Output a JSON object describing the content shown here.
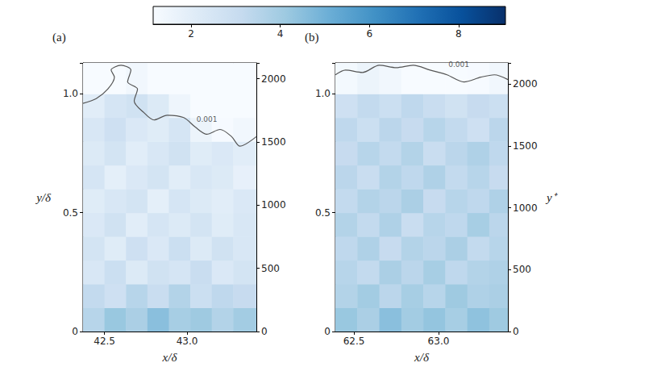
{
  "chart_data": [
    {
      "type": "heatmap",
      "panel": "(a)",
      "xlabel": "x/δ",
      "ylabel": "y/δ",
      "xlim": [
        42.37,
        43.42
      ],
      "xticks": [
        42.5,
        {
          "value": 43,
          "label": "43.0"
        }
      ],
      "ylim": [
        0,
        1.13
      ],
      "yticks": [
        0,
        0.5,
        {
          "value": 1,
          "label": "1.0"
        }
      ],
      "y2lim": [
        0,
        2125
      ],
      "y2ticks": [
        0,
        500,
        1000,
        1500,
        2000
      ],
      "x_edges": [
        42.37,
        42.5,
        42.63,
        42.76,
        42.89,
        43.02,
        43.15,
        43.28,
        43.42
      ],
      "y_edges": [
        0,
        0.1,
        0.2,
        0.3,
        0.4,
        0.5,
        0.6,
        0.7,
        0.8,
        0.9,
        1.0,
        1.13
      ],
      "cells": [
        [
          3.5,
          4.2,
          3.8,
          4.5,
          3.9,
          4.1,
          3.6,
          4.0
        ],
        [
          3.2,
          2.8,
          3.5,
          3.0,
          3.6,
          2.9,
          3.3,
          3.1
        ],
        [
          2.4,
          2.9,
          2.2,
          2.7,
          2.5,
          3.0,
          2.3,
          2.6
        ],
        [
          2.6,
          2.1,
          2.8,
          2.3,
          2.9,
          2.2,
          2.7,
          2.4
        ],
        [
          2.3,
          2.7,
          2.0,
          2.5,
          2.2,
          2.6,
          2.1,
          2.4
        ],
        [
          2.1,
          2.4,
          2.6,
          1.9,
          2.5,
          2.2,
          2.0,
          2.3
        ],
        [
          2.5,
          1.9,
          2.3,
          2.6,
          2.0,
          2.4,
          2.2,
          1.8
        ],
        [
          2.2,
          2.6,
          2.0,
          2.4,
          2.7,
          2.1,
          2.3,
          2.0
        ],
        [
          2.4,
          2.8,
          2.3,
          2.1,
          2.5,
          1.6,
          1.2,
          1.4
        ],
        [
          2.0,
          2.5,
          2.7,
          2.2,
          1.5,
          0.9,
          0.7,
          0.8
        ],
        [
          0.7,
          0.9,
          1.4,
          0.8,
          0.6,
          0.6,
          0.6,
          0.6
        ]
      ],
      "contour": {
        "label": "0.001",
        "x": [
          42.37,
          42.45,
          42.52,
          42.56,
          42.54,
          42.6,
          42.66,
          42.64,
          42.7,
          42.68,
          42.74,
          42.8,
          42.88,
          42.98,
          43.05,
          43.12,
          43.2,
          43.27,
          43.32,
          43.42
        ],
        "y": [
          0.96,
          0.98,
          1.02,
          1.07,
          1.1,
          1.12,
          1.1,
          1.05,
          1.02,
          0.97,
          0.92,
          0.89,
          0.91,
          0.9,
          0.86,
          0.83,
          0.85,
          0.82,
          0.78,
          0.82
        ],
        "label_x": 43.12,
        "label_y": 0.87
      }
    },
    {
      "type": "heatmap",
      "panel": "(b)",
      "xlabel": "x/δ",
      "y2label": "y⁺",
      "xlim": [
        62.39,
        63.41
      ],
      "xticks": [
        62.5,
        {
          "value": 63,
          "label": "63.0"
        }
      ],
      "ylim": [
        0,
        1.13
      ],
      "yticks": [
        0,
        0.5,
        {
          "value": 1,
          "label": "1.0"
        }
      ],
      "y2lim": [
        0,
        2172
      ],
      "y2ticks": [
        0,
        500,
        1000,
        1500,
        2000
      ],
      "x_edges": [
        62.39,
        62.52,
        62.65,
        62.78,
        62.91,
        63.04,
        63.17,
        63.3,
        63.41
      ],
      "y_edges": [
        0,
        0.1,
        0.2,
        0.3,
        0.4,
        0.5,
        0.6,
        0.7,
        0.8,
        0.9,
        1.0,
        1.13
      ],
      "cells": [
        [
          4.2,
          3.8,
          4.5,
          4.0,
          4.3,
          3.9,
          4.4,
          4.1
        ],
        [
          3.6,
          4.0,
          3.4,
          3.9,
          3.5,
          4.1,
          3.7,
          3.8
        ],
        [
          3.5,
          3.2,
          3.8,
          3.4,
          3.9,
          3.3,
          3.6,
          3.7
        ],
        [
          3.3,
          3.7,
          3.1,
          3.6,
          3.4,
          3.8,
          3.2,
          3.5
        ],
        [
          3.6,
          3.2,
          3.7,
          3.0,
          3.5,
          3.3,
          3.9,
          3.4
        ],
        [
          3.2,
          3.6,
          3.4,
          3.8,
          3.1,
          3.5,
          3.3,
          3.7
        ],
        [
          3.4,
          3.0,
          3.6,
          3.3,
          3.7,
          3.2,
          3.5,
          3.1
        ],
        [
          3.1,
          3.5,
          3.2,
          3.6,
          3.0,
          3.4,
          3.7,
          3.3
        ],
        [
          3.3,
          2.9,
          3.4,
          3.1,
          3.5,
          3.2,
          2.8,
          3.4
        ],
        [
          2.8,
          3.2,
          2.9,
          3.3,
          3.0,
          2.7,
          3.1,
          2.9
        ],
        [
          1.3,
          1.6,
          1.4,
          1.1,
          1.0,
          0.9,
          1.2,
          1.4
        ]
      ],
      "contour": {
        "label": "0.001",
        "x": [
          62.39,
          62.45,
          62.55,
          62.65,
          62.75,
          62.85,
          62.95,
          63.05,
          63.15,
          63.25,
          63.33,
          63.41
        ],
        "y": [
          1.08,
          1.1,
          1.09,
          1.12,
          1.11,
          1.12,
          1.1,
          1.08,
          1.05,
          1.07,
          1.08,
          1.06
        ],
        "label_x": 63.12,
        "label_y": 1.1
      }
    }
  ],
  "colorbar": {
    "range": [
      1.15,
      9.05
    ],
    "ticks": [
      2,
      4,
      6,
      8
    ]
  }
}
